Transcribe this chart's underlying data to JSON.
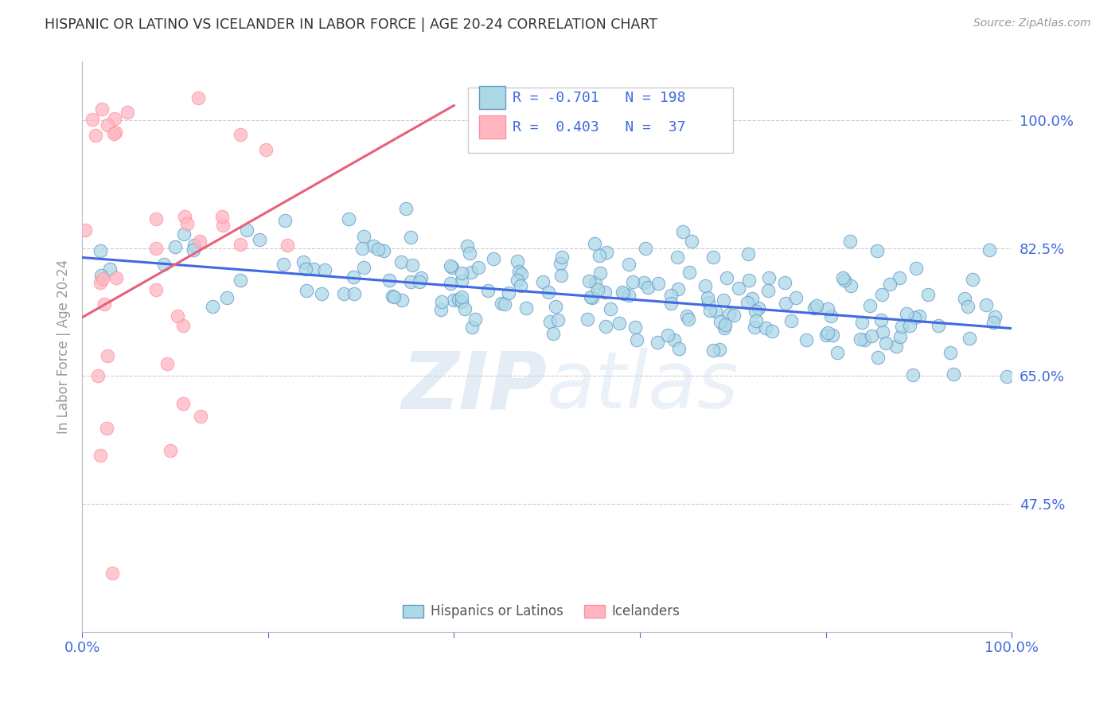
{
  "title": "HISPANIC OR LATINO VS ICELANDER IN LABOR FORCE | AGE 20-24 CORRELATION CHART",
  "source": "Source: ZipAtlas.com",
  "ylabel": "In Labor Force | Age 20-24",
  "watermark_zip": "ZIP",
  "watermark_atlas": "atlas",
  "xlim": [
    0.0,
    1.0
  ],
  "ylim": [
    0.3,
    1.08
  ],
  "ytick_positions": [
    0.475,
    0.65,
    0.825,
    1.0
  ],
  "ytick_labels": [
    "47.5%",
    "65.0%",
    "82.5%",
    "100.0%"
  ],
  "blue_R": "-0.701",
  "blue_N": "198",
  "pink_R": "0.403",
  "pink_N": "37",
  "legend_labels": [
    "Hispanics or Latinos",
    "Icelanders"
  ],
  "blue_scatter_color": "#ADD8E6",
  "pink_scatter_color": "#FFB6C1",
  "blue_edge_color": "#6699CC",
  "pink_edge_color": "#FF8FA0",
  "blue_line_color": "#4169E1",
  "pink_line_color": "#E8607A",
  "grid_color": "#CCCCCC",
  "title_color": "#333333",
  "axis_label_color": "#4169E1",
  "right_tick_color": "#4169E1",
  "background_color": "#FFFFFF",
  "blue_trend_x": [
    0.0,
    1.0
  ],
  "blue_trend_y": [
    0.812,
    0.715
  ],
  "pink_trend_x": [
    0.0,
    0.4
  ],
  "pink_trend_y": [
    0.73,
    1.02
  ],
  "seed_blue": 42,
  "seed_pink": 123,
  "n_blue": 198,
  "n_pink": 37
}
